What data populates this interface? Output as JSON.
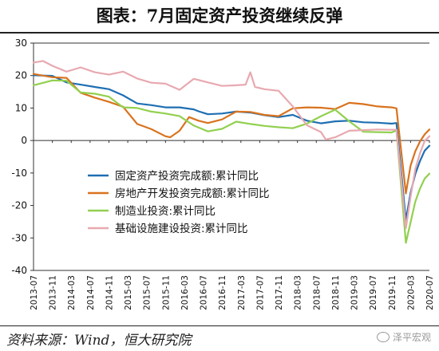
{
  "title": "图表：7月固定资产投资继续反弹",
  "source": "资料来源：Wind，恒大研究院",
  "watermark": "泽平宏观",
  "chart_data": {
    "type": "line",
    "ylim": [
      -40,
      30
    ],
    "yticks": [
      30,
      20,
      10,
      0,
      -10,
      -20,
      -30,
      -40
    ],
    "x_tick_labels": [
      "2013-07",
      "2013-11",
      "2014-03",
      "2014-07",
      "2014-11",
      "2015-03",
      "2015-07",
      "2015-11",
      "2016-03",
      "2016-07",
      "2016-11",
      "2017-03",
      "2017-07",
      "2017-11",
      "2018-03",
      "2018-07",
      "2018-11",
      "2019-03",
      "2019-07",
      "2019-11",
      "2020-03",
      "2020-07"
    ],
    "x_start": "2013-07",
    "x_end": "2020-07",
    "legend_position": "lower-left",
    "series": [
      {
        "name": "固定资产投资完成额:累计同比",
        "color": "#1f6fb2",
        "points": [
          [
            "2013-07",
            20.1
          ],
          [
            "2013-11",
            19.9
          ],
          [
            "2014-02",
            17.9
          ],
          [
            "2014-05",
            17.2
          ],
          [
            "2014-08",
            16.5
          ],
          [
            "2014-11",
            15.8
          ],
          [
            "2015-02",
            13.9
          ],
          [
            "2015-05",
            11.4
          ],
          [
            "2015-08",
            10.9
          ],
          [
            "2015-11",
            10.2
          ],
          [
            "2016-02",
            10.2
          ],
          [
            "2016-05",
            9.6
          ],
          [
            "2016-06",
            9.0
          ],
          [
            "2016-08",
            8.1
          ],
          [
            "2016-11",
            8.3
          ],
          [
            "2017-02",
            8.9
          ],
          [
            "2017-05",
            8.6
          ],
          [
            "2017-08",
            7.8
          ],
          [
            "2017-11",
            7.2
          ],
          [
            "2018-02",
            7.9
          ],
          [
            "2018-05",
            6.1
          ],
          [
            "2018-08",
            5.3
          ],
          [
            "2018-11",
            5.9
          ],
          [
            "2019-02",
            6.1
          ],
          [
            "2019-05",
            5.6
          ],
          [
            "2019-08",
            5.5
          ],
          [
            "2019-11",
            5.2
          ],
          [
            "2019-12",
            5.4
          ],
          [
            "2020-02",
            -24.5
          ],
          [
            "2020-03",
            -16.1
          ],
          [
            "2020-04",
            -10.3
          ],
          [
            "2020-05",
            -6.3
          ],
          [
            "2020-06",
            -3.1
          ],
          [
            "2020-07",
            -1.6
          ]
        ]
      },
      {
        "name": "房地产开发投资完成额:累计同比",
        "color": "#d9731f",
        "points": [
          [
            "2013-07",
            20.5
          ],
          [
            "2013-11",
            19.5
          ],
          [
            "2014-02",
            19.3
          ],
          [
            "2014-05",
            14.7
          ],
          [
            "2014-08",
            13.2
          ],
          [
            "2014-11",
            11.9
          ],
          [
            "2015-02",
            10.4
          ],
          [
            "2015-05",
            5.1
          ],
          [
            "2015-08",
            3.5
          ],
          [
            "2015-11",
            1.3
          ],
          [
            "2015-12",
            1.0
          ],
          [
            "2016-02",
            3.0
          ],
          [
            "2016-04",
            7.2
          ],
          [
            "2016-06",
            6.1
          ],
          [
            "2016-08",
            5.4
          ],
          [
            "2016-11",
            6.5
          ],
          [
            "2017-02",
            8.9
          ],
          [
            "2017-05",
            8.8
          ],
          [
            "2017-08",
            7.9
          ],
          [
            "2017-11",
            7.5
          ],
          [
            "2018-02",
            9.9
          ],
          [
            "2018-05",
            10.2
          ],
          [
            "2018-08",
            10.1
          ],
          [
            "2018-11",
            9.7
          ],
          [
            "2019-02",
            11.6
          ],
          [
            "2019-05",
            11.2
          ],
          [
            "2019-08",
            10.5
          ],
          [
            "2019-11",
            10.2
          ],
          [
            "2019-12",
            9.9
          ],
          [
            "2020-02",
            -16.3
          ],
          [
            "2020-03",
            -7.7
          ],
          [
            "2020-04",
            -3.3
          ],
          [
            "2020-05",
            -0.3
          ],
          [
            "2020-06",
            1.9
          ],
          [
            "2020-07",
            3.4
          ]
        ]
      },
      {
        "name": "制造业投资:累计同比",
        "color": "#92d050",
        "points": [
          [
            "2013-07",
            17.0
          ],
          [
            "2013-11",
            18.5
          ],
          [
            "2014-02",
            18.4
          ],
          [
            "2014-05",
            14.8
          ],
          [
            "2014-08",
            14.4
          ],
          [
            "2014-11",
            13.5
          ],
          [
            "2015-02",
            10.2
          ],
          [
            "2015-05",
            10.0
          ],
          [
            "2015-08",
            8.9
          ],
          [
            "2015-11",
            8.3
          ],
          [
            "2016-02",
            7.5
          ],
          [
            "2016-05",
            4.6
          ],
          [
            "2016-08",
            2.8
          ],
          [
            "2016-11",
            3.6
          ],
          [
            "2017-02",
            5.8
          ],
          [
            "2017-05",
            5.1
          ],
          [
            "2017-08",
            4.5
          ],
          [
            "2017-11",
            4.1
          ],
          [
            "2018-02",
            3.8
          ],
          [
            "2018-05",
            5.2
          ],
          [
            "2018-08",
            7.5
          ],
          [
            "2018-11",
            9.5
          ],
          [
            "2019-02",
            5.9
          ],
          [
            "2019-05",
            2.7
          ],
          [
            "2019-08",
            2.6
          ],
          [
            "2019-11",
            2.5
          ],
          [
            "2019-12",
            3.1
          ],
          [
            "2020-02",
            -31.5
          ],
          [
            "2020-03",
            -25.2
          ],
          [
            "2020-04",
            -18.8
          ],
          [
            "2020-05",
            -14.8
          ],
          [
            "2020-06",
            -11.7
          ],
          [
            "2020-07",
            -10.2
          ]
        ]
      },
      {
        "name": "基础设施建设投资:累计同比",
        "color": "#e8a9b0",
        "points": [
          [
            "2013-07",
            24.0
          ],
          [
            "2013-09",
            24.5
          ],
          [
            "2013-11",
            23.0
          ],
          [
            "2014-02",
            21.2
          ],
          [
            "2014-05",
            22.5
          ],
          [
            "2014-08",
            21.0
          ],
          [
            "2014-11",
            20.3
          ],
          [
            "2015-02",
            21.2
          ],
          [
            "2015-05",
            19.1
          ],
          [
            "2015-08",
            17.8
          ],
          [
            "2015-11",
            17.5
          ],
          [
            "2016-02",
            15.6
          ],
          [
            "2016-05",
            19.0
          ],
          [
            "2016-08",
            17.9
          ],
          [
            "2016-11",
            16.8
          ],
          [
            "2017-02",
            17.0
          ],
          [
            "2017-04",
            17.2
          ],
          [
            "2017-05",
            21.0
          ],
          [
            "2017-06",
            16.5
          ],
          [
            "2017-08",
            15.8
          ],
          [
            "2017-11",
            15.3
          ],
          [
            "2018-02",
            10.5
          ],
          [
            "2018-05",
            4.7
          ],
          [
            "2018-08",
            2.6
          ],
          [
            "2018-09",
            0.3
          ],
          [
            "2018-11",
            1.0
          ],
          [
            "2019-02",
            3.0
          ],
          [
            "2019-05",
            3.2
          ],
          [
            "2019-08",
            3.4
          ],
          [
            "2019-11",
            3.3
          ],
          [
            "2019-12",
            3.3
          ],
          [
            "2020-02",
            -27.0
          ],
          [
            "2020-03",
            -17.3
          ],
          [
            "2020-04",
            -8.8
          ],
          [
            "2020-05",
            -3.9
          ],
          [
            "2020-06",
            -0.1
          ],
          [
            "2020-07",
            1.3
          ]
        ]
      }
    ]
  }
}
